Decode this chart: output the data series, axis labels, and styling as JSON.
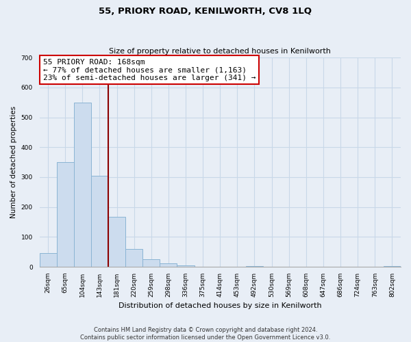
{
  "title": "55, PRIORY ROAD, KENILWORTH, CV8 1LQ",
  "subtitle": "Size of property relative to detached houses in Kenilworth",
  "xlabel": "Distribution of detached houses by size in Kenilworth",
  "ylabel": "Number of detached properties",
  "bar_labels": [
    "26sqm",
    "65sqm",
    "104sqm",
    "143sqm",
    "181sqm",
    "220sqm",
    "259sqm",
    "298sqm",
    "336sqm",
    "375sqm",
    "414sqm",
    "453sqm",
    "492sqm",
    "530sqm",
    "569sqm",
    "608sqm",
    "647sqm",
    "686sqm",
    "724sqm",
    "763sqm",
    "802sqm"
  ],
  "bar_values": [
    46,
    350,
    550,
    305,
    168,
    60,
    25,
    11,
    4,
    0,
    0,
    0,
    2,
    0,
    0,
    0,
    0,
    0,
    0,
    0,
    3
  ],
  "bar_color": "#ccdcee",
  "bar_edge_color": "#8ab4d4",
  "ylim": [
    0,
    700
  ],
  "yticks": [
    0,
    100,
    200,
    300,
    400,
    500,
    600,
    700
  ],
  "vline_x_index": 4,
  "vline_color": "#8b0000",
  "annotation_title": "55 PRIORY ROAD: 168sqm",
  "annotation_line1": "← 77% of detached houses are smaller (1,163)",
  "annotation_line2": "23% of semi-detached houses are larger (341) →",
  "annotation_box_facecolor": "#ffffff",
  "annotation_box_edgecolor": "#cc0000",
  "footnote1": "Contains HM Land Registry data © Crown copyright and database right 2024.",
  "footnote2": "Contains public sector information licensed under the Open Government Licence v3.0.",
  "grid_color": "#c8d8e8",
  "background_color": "#e8eef6",
  "title_fontsize": 9.5,
  "subtitle_fontsize": 8,
  "ylabel_fontsize": 7.5,
  "xlabel_fontsize": 8,
  "tick_fontsize": 6.5,
  "annotation_fontsize": 8,
  "footnote_fontsize": 6
}
